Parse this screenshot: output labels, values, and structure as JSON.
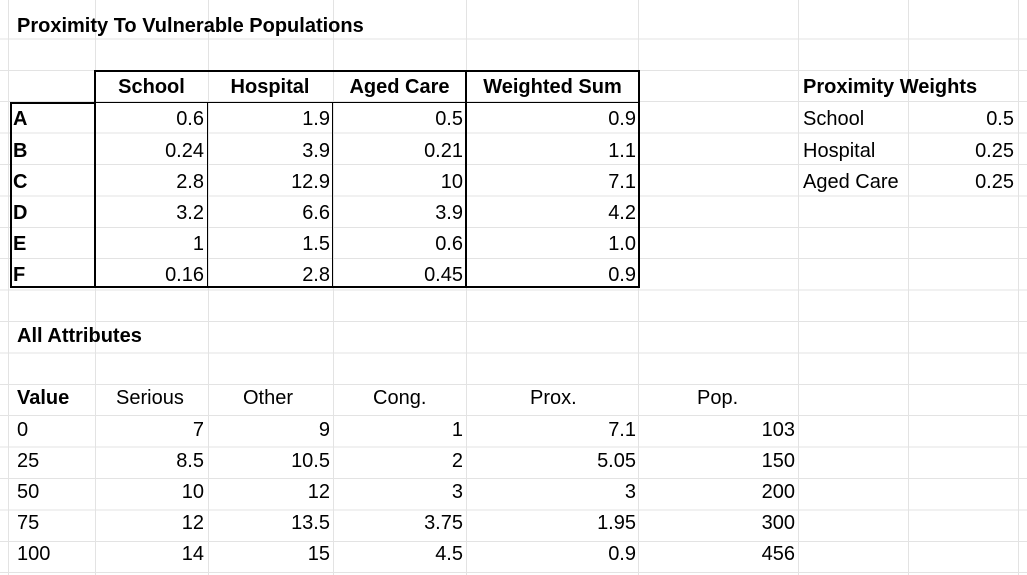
{
  "sheet": {
    "title": "Proximity To Vulnerable Populations",
    "proximity_table": {
      "headers": [
        "School",
        "Hospital",
        "Aged Care",
        "Weighted Sum"
      ],
      "rows": [
        {
          "label": "A",
          "values": [
            "0.6",
            "1.9",
            "0.5",
            "0.9"
          ]
        },
        {
          "label": "B",
          "values": [
            "0.24",
            "3.9",
            "0.21",
            "1.1"
          ]
        },
        {
          "label": "C",
          "values": [
            "2.8",
            "12.9",
            "10",
            "7.1"
          ]
        },
        {
          "label": "D",
          "values": [
            "3.2",
            "6.6",
            "3.9",
            "4.2"
          ]
        },
        {
          "label": "E",
          "values": [
            "1",
            "1.5",
            "0.6",
            "1.0"
          ]
        },
        {
          "label": "F",
          "values": [
            "0.16",
            "2.8",
            "0.45",
            "0.9"
          ]
        }
      ]
    },
    "weights": {
      "title": "Proximity Weights",
      "rows": [
        {
          "label": "School",
          "value": "0.5"
        },
        {
          "label": "Hospital",
          "value": "0.25"
        },
        {
          "label": "Aged Care",
          "value": "0.25"
        }
      ]
    },
    "attributes": {
      "title": "All Attributes",
      "headers": [
        "Value",
        "Serious",
        "Other",
        "Cong.",
        "Prox.",
        "Pop."
      ],
      "rows": [
        [
          "0",
          "7",
          "9",
          "1",
          "7.1",
          "103"
        ],
        [
          "25",
          "8.5",
          "10.5",
          "2",
          "5.05",
          "150"
        ],
        [
          "50",
          "10",
          "12",
          "3",
          "3",
          "200"
        ],
        [
          "75",
          "12",
          "13.5",
          "3.75",
          "1.95",
          "300"
        ],
        [
          "100",
          "14",
          "15",
          "4.5",
          "0.9",
          "456"
        ]
      ]
    }
  }
}
